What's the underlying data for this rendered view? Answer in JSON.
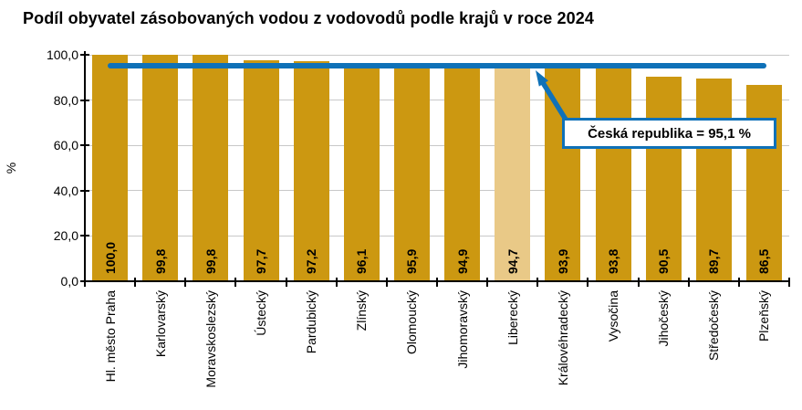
{
  "title": "Podíl obyvatel zásobovaných vodou z vodovodů podle krajů v roce 2024",
  "chart_data": {
    "type": "bar",
    "title": "Podíl obyvatel zásobovaných vodou z vodovodů podle krajů v roce 2024",
    "xlabel": "",
    "ylabel": "%",
    "ylim": [
      0,
      100
    ],
    "ytick_step": 20,
    "ytick_labels": [
      "0,0",
      "20,0",
      "40,0",
      "60,0",
      "80,0",
      "100,0"
    ],
    "grid": true,
    "legend": false,
    "categories": [
      "Hl. město Praha",
      "Karlovarský",
      "Moravskoslezský",
      "Ústecký",
      "Pardubický",
      "Zlínský",
      "Olomoucký",
      "Jihomoravský",
      "Liberecký",
      "Královéhradecký",
      "Vysočina",
      "Jihočeský",
      "Středočeský",
      "Plzeňský"
    ],
    "values": [
      100.0,
      99.8,
      99.8,
      97.7,
      97.2,
      96.1,
      95.9,
      94.9,
      94.7,
      93.9,
      93.8,
      90.5,
      89.7,
      86.5
    ],
    "value_labels": [
      "100,0",
      "99,8",
      "99,8",
      "97,7",
      "97,2",
      "96,1",
      "95,9",
      "94,9",
      "94,7",
      "93,9",
      "93,8",
      "90,5",
      "89,7",
      "86,5"
    ],
    "highlight_index": 8,
    "reference_line": {
      "value": 95.1,
      "label": "Česká republika = 95,1 %"
    },
    "colors": {
      "bar": "#cc9811",
      "highlight_bar": "#e9c987",
      "reference": "#0f71b8",
      "grid": "#c8c8c8",
      "axis": "#000000",
      "text": "#000000",
      "background": "#ffffff"
    }
  }
}
